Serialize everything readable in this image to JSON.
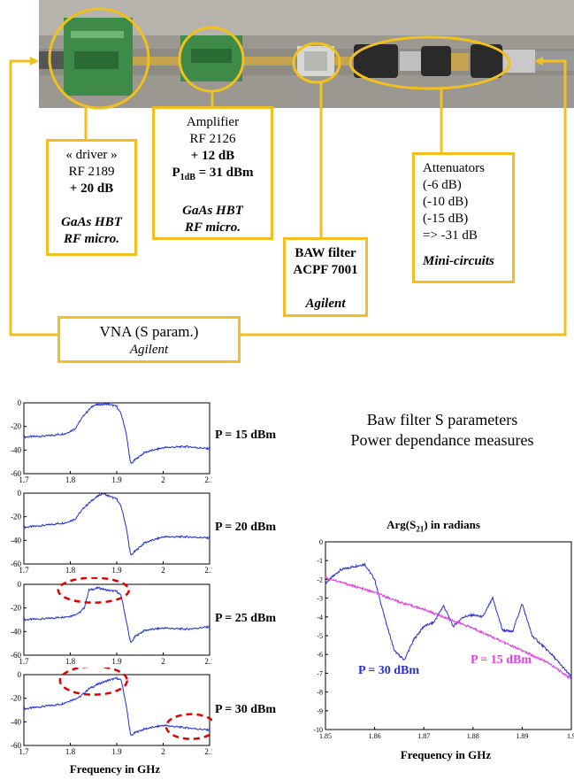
{
  "setup": {
    "driver": {
      "l1": "« driver »",
      "l2": "RF 2189",
      "l3": "+ 20 dB",
      "l4": "GaAs HBT",
      "l5": "RF micro."
    },
    "amplifier": {
      "l1": "Amplifier",
      "l2": "RF 2126",
      "l3": "+ 12 dB",
      "l4a": "P",
      "l4sub": "1dB",
      "l4b": " = 31 dBm",
      "l5": "GaAs HBT",
      "l6": "RF micro."
    },
    "baw": {
      "l1": "BAW filter",
      "l2": "ACPF 7001",
      "l3": "Agilent"
    },
    "attenuators": {
      "l1": "Attenuators",
      "l2": "(-6 dB)",
      "l3": "(-10 dB)",
      "l4": "(-15 dB)",
      "l5": "=> -31 dB",
      "l6": "Mini-circuits"
    },
    "vna": {
      "l1": "VNA (S param.)",
      "l2": "Agilent"
    }
  },
  "right_title": {
    "l1": "Baw filter S parameters",
    "l2": "Power dependance measures"
  },
  "plot_labels": [
    "P = 15 dBm",
    "P = 20 dBm",
    "P = 25 dBm",
    "P = 30 dBm"
  ],
  "left_xlabel": "Frequency in GHz",
  "phase_plot": {
    "title_a": "Arg(S",
    "title_sub": "21",
    "title_b": ") in radians",
    "label_30": "P = 30 dBm",
    "label_15": "P = 15 dBm",
    "xlabel": "Frequency in GHz"
  },
  "chart_data": [
    {
      "type": "line",
      "xlim": [
        1.7,
        2.1
      ],
      "ylim": [
        -60,
        0
      ],
      "x_ticks": [
        "1.7",
        "1.8",
        "1.9",
        "2",
        "2.1"
      ],
      "y_ticks": [
        "0",
        "-20",
        "-40",
        "-60"
      ],
      "series": [
        {
          "x": [
            1.7,
            1.75,
            1.79,
            1.81,
            1.83,
            1.85,
            1.88,
            1.9,
            1.91,
            1.92,
            1.93,
            1.94,
            1.96,
            2.0,
            2.05,
            2.1
          ],
          "values": [
            -29,
            -28,
            -26,
            -22,
            -10,
            -2,
            -1,
            -3,
            -10,
            -25,
            -52,
            -48,
            -42,
            -38,
            -37,
            -39
          ]
        }
      ]
    },
    {
      "type": "line",
      "xlim": [
        1.7,
        2.1
      ],
      "ylim": [
        -60,
        0
      ],
      "x_ticks": [
        "1.7",
        "1.8",
        "1.9",
        "2",
        "2.1"
      ],
      "y_ticks": [
        "0",
        "-20",
        "-40",
        "-60"
      ],
      "series": [
        {
          "x": [
            1.7,
            1.75,
            1.79,
            1.81,
            1.83,
            1.85,
            1.87,
            1.88,
            1.9,
            1.91,
            1.92,
            1.93,
            1.94,
            1.96,
            2.0,
            2.05,
            2.1
          ],
          "values": [
            -29,
            -27,
            -25,
            -22,
            -12,
            -5,
            0,
            -2,
            -5,
            -12,
            -28,
            -53,
            -49,
            -42,
            -37,
            -37,
            -38
          ]
        }
      ]
    },
    {
      "type": "line",
      "xlim": [
        1.7,
        2.1
      ],
      "ylim": [
        -60,
        0
      ],
      "x_ticks": [
        "1.7",
        "1.8",
        "1.9",
        "2",
        "2.1"
      ],
      "y_ticks": [
        "0",
        "-20",
        "-40",
        "-60"
      ],
      "series": [
        {
          "x": [
            1.7,
            1.75,
            1.8,
            1.82,
            1.83,
            1.84,
            1.86,
            1.88,
            1.9,
            1.91,
            1.92,
            1.93,
            1.94,
            1.96,
            2.0,
            2.05,
            2.1
          ],
          "values": [
            -30,
            -29,
            -27,
            -24,
            -20,
            -5,
            -3,
            -5,
            -6,
            -10,
            -30,
            -50,
            -44,
            -39,
            -37,
            -38,
            -36
          ]
        }
      ]
    },
    {
      "type": "line",
      "xlim": [
        1.7,
        2.1
      ],
      "ylim": [
        -60,
        0
      ],
      "x_ticks": [
        "1.7",
        "1.8",
        "1.9",
        "2",
        "2.1"
      ],
      "y_ticks": [
        "0",
        "-20",
        "-40",
        "-60"
      ],
      "series": [
        {
          "x": [
            1.7,
            1.74,
            1.78,
            1.8,
            1.82,
            1.84,
            1.86,
            1.88,
            1.9,
            1.91,
            1.92,
            1.93,
            1.94,
            1.96,
            2.0,
            2.05,
            2.1
          ],
          "values": [
            -29,
            -27,
            -25,
            -22,
            -19,
            -12,
            -8,
            -5,
            -3,
            -5,
            -25,
            -52,
            -49,
            -46,
            -43,
            -45,
            -47
          ]
        }
      ]
    },
    {
      "type": "line",
      "title": "Arg(S21) in radians",
      "xlabel": "Frequency in GHz",
      "xlim": [
        1.85,
        1.9
      ],
      "ylim": [
        -10,
        0
      ],
      "x_ticks": [
        "1.85",
        "1.86",
        "1.87",
        "1.88",
        "1.89",
        "1.9"
      ],
      "y_ticks": [
        "0",
        "-1",
        "-2",
        "-3",
        "-4",
        "-5",
        "-6",
        "-7",
        "-8",
        "-9",
        "-10"
      ],
      "series": [
        {
          "name": "P = 30 dBm",
          "color": "#2a2fd0",
          "x": [
            1.85,
            1.853,
            1.856,
            1.858,
            1.86,
            1.862,
            1.864,
            1.866,
            1.868,
            1.87,
            1.872,
            1.874,
            1.876,
            1.878,
            1.88,
            1.882,
            1.884,
            1.886,
            1.888,
            1.89,
            1.892,
            1.894,
            1.896,
            1.898,
            1.9
          ],
          "values": [
            -2.2,
            -1.5,
            -1.3,
            -1.2,
            -2.0,
            -4.0,
            -5.8,
            -6.3,
            -5.2,
            -4.5,
            -4.3,
            -3.4,
            -4.5,
            -4.0,
            -3.9,
            -4.0,
            -3.0,
            -4.7,
            -4.8,
            -3.3,
            -5.0,
            -5.5,
            -6.0,
            -6.6,
            -7.2
          ]
        },
        {
          "name": "P = 15 dBm",
          "color": "#e040e0",
          "x": [
            1.85,
            1.855,
            1.86,
            1.865,
            1.87,
            1.875,
            1.88,
            1.885,
            1.89,
            1.895,
            1.9
          ],
          "values": [
            -1.9,
            -2.3,
            -2.7,
            -3.2,
            -3.6,
            -4.1,
            -4.6,
            -5.2,
            -5.8,
            -6.4,
            -7.3
          ]
        }
      ]
    }
  ]
}
